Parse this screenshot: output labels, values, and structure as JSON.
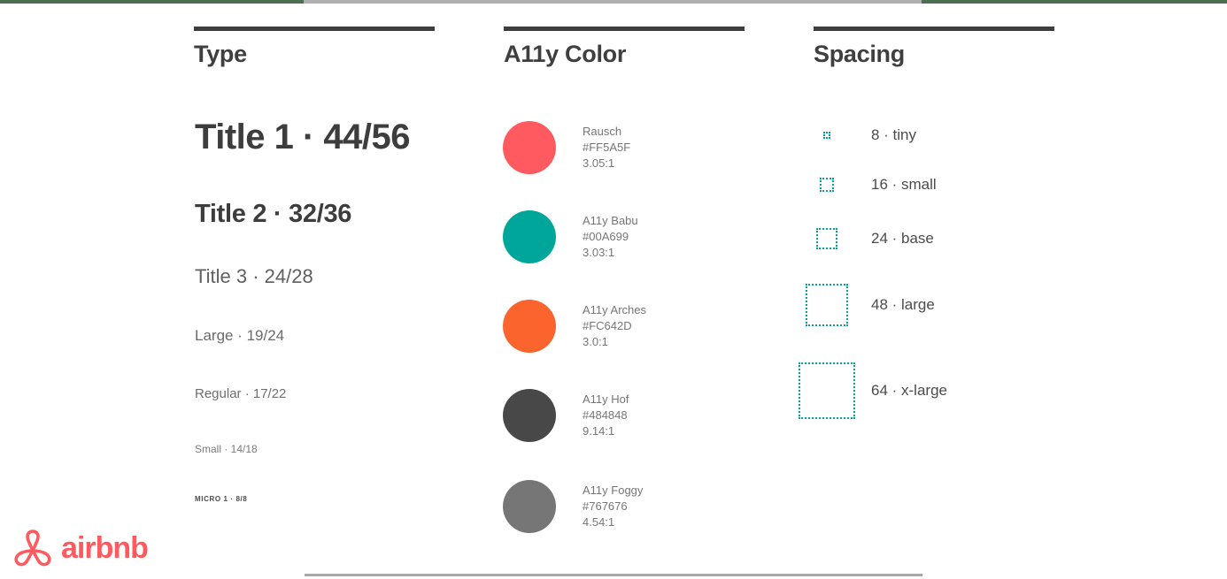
{
  "edges": {
    "top_left_color": "#4a7050",
    "top_middle_color": "#b0b0b0",
    "top_right_color": "#4a7050",
    "bottom_rule_color": "#a8a8a8"
  },
  "columns": {
    "type": {
      "title": "Type",
      "items": [
        {
          "label": "Title 1 · 44/56"
        },
        {
          "label": "Title 2 · 32/36"
        },
        {
          "label": "Title 3 · 24/28"
        },
        {
          "label": "Large · 19/24"
        },
        {
          "label": "Regular · 17/22"
        },
        {
          "label": "Small · 14/18"
        },
        {
          "label": "MICRO 1 · 8/8"
        }
      ]
    },
    "color": {
      "title": "A11y Color",
      "swatches": [
        {
          "name": "Rausch",
          "hex": "#FF5A5F",
          "contrast": "3.05:1"
        },
        {
          "name": "A11y Babu",
          "hex": "#00A699",
          "contrast": "3.03:1"
        },
        {
          "name": "A11y Arches",
          "hex": "#FC642D",
          "contrast": "3.0:1"
        },
        {
          "name": "A11y Hof",
          "hex": "#484848",
          "contrast": "9.14:1"
        },
        {
          "name": "A11y Foggy",
          "hex": "#767676",
          "contrast": "4.54:1"
        }
      ]
    },
    "spacing": {
      "title": "Spacing",
      "accent": "#00A699",
      "items": [
        {
          "label": "8 · tiny",
          "size": 8
        },
        {
          "label": "16 · small",
          "size": 16
        },
        {
          "label": "24 · base",
          "size": 24
        },
        {
          "label": "48 · large",
          "size": 48
        },
        {
          "label": "64 · x-large",
          "size": 64
        }
      ]
    }
  },
  "brand": {
    "wordmark": "airbnb",
    "color": "#FF5A5F",
    "icon": "airbnb-belo-icon"
  }
}
